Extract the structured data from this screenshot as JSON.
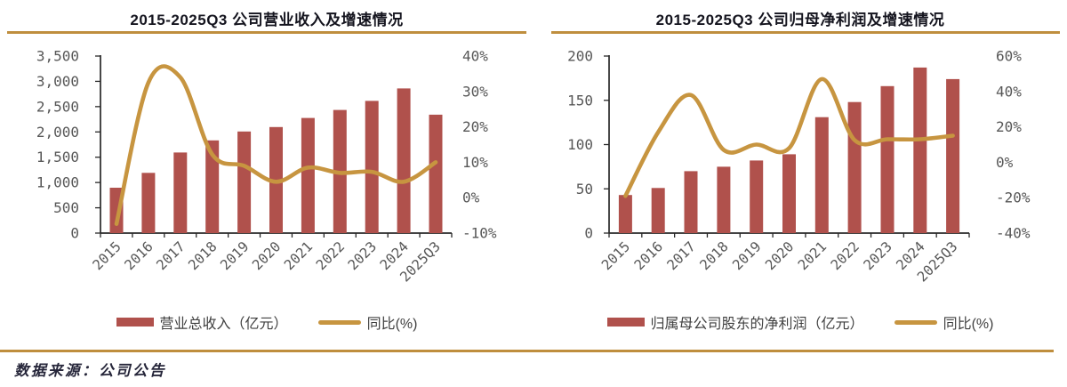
{
  "colors": {
    "bar": "#b0514c",
    "line": "#c79540",
    "gold_rule": "#bf8e3e",
    "axis_text": "#575757",
    "axis_line": "#282828",
    "title_text": "#14141e",
    "legend_text": "#3f3f3f",
    "source_text": "#26263a"
  },
  "charts": [
    {
      "title": "2015-2025Q3 公司营业收入及增速情况",
      "legend": [
        {
          "swatch": "bar",
          "label": "营业总收入（亿元）"
        },
        {
          "swatch": "line",
          "label": "同比(%)"
        }
      ]
    },
    {
      "title": "2015-2025Q3 公司归母净利润及增速情况",
      "legend": [
        {
          "swatch": "bar",
          "label": "归属母公司股东的净利润（亿元）"
        },
        {
          "swatch": "line",
          "label": "同比(%)"
        }
      ]
    }
  ],
  "chart_data": [
    {
      "type": "bar+line",
      "title": "2015-2025Q3 公司营业收入及增速情况",
      "categories": [
        "2015",
        "2016",
        "2017",
        "2018",
        "2019",
        "2020",
        "2021",
        "2022",
        "2023",
        "2024",
        "2025Q3"
      ],
      "series": [
        {
          "name": "营业总收入（亿元）",
          "type": "bar",
          "axis": "left",
          "values": [
            897,
            1190,
            1593,
            1833,
            2008,
            2097,
            2276,
            2435,
            2614,
            2860,
            2341
          ]
        },
        {
          "name": "同比(%)",
          "type": "line",
          "axis": "right",
          "values": [
            -7.4,
            32.5,
            34,
            12.2,
            9,
            4.5,
            8.5,
            7,
            7.3,
            4.5,
            10
          ]
        }
      ],
      "left_axis": {
        "min": 0,
        "max": 3500,
        "step": 500
      },
      "right_axis": {
        "min": -10,
        "max": 40,
        "step": 10,
        "suffix": "%"
      },
      "grid": false,
      "legend_position": "bottom"
    },
    {
      "type": "bar+line",
      "title": "2015-2025Q3 公司归母净利润及增速情况",
      "categories": [
        "2015",
        "2016",
        "2017",
        "2018",
        "2019",
        "2020",
        "2021",
        "2022",
        "2023",
        "2024",
        "2025Q3"
      ],
      "series": [
        {
          "name": "归属母公司股东的净利润（亿元）",
          "type": "bar",
          "axis": "left",
          "values": [
            43,
            51,
            70,
            75,
            82,
            89,
            131,
            148,
            166,
            187,
            174
          ]
        },
        {
          "name": "同比(%)",
          "type": "line",
          "axis": "right",
          "values": [
            -19,
            17,
            38,
            7,
            10,
            8,
            47,
            12.5,
            13,
            13,
            15
          ]
        }
      ],
      "left_axis": {
        "min": 0,
        "max": 200,
        "step": 50
      },
      "right_axis": {
        "min": -40,
        "max": 60,
        "step": 20,
        "suffix": "%"
      },
      "grid": false,
      "legend_position": "bottom"
    }
  ],
  "footer": {
    "source_note": "数据来源：公司公告"
  }
}
